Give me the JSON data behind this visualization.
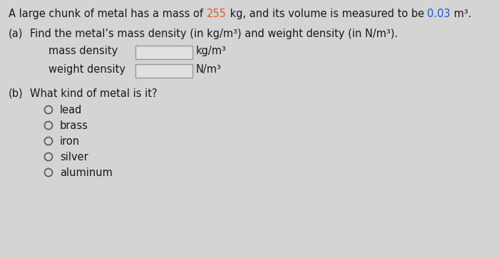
{
  "background_color": "#d4d4d4",
  "text_color": "#1a1a1a",
  "highlight_255": "#e05a2b",
  "highlight_003": "#2255cc",
  "font_size": 10.5,
  "font_size_super": 7.5,
  "title_parts": [
    [
      "A large chunk of metal has a mass of ",
      "#1a1a1a"
    ],
    [
      "255",
      "#e05a2b"
    ],
    [
      " kg, and its volume is measured to be ",
      "#1a1a1a"
    ],
    [
      "0.03",
      "#2255cc"
    ],
    [
      " m³.",
      "#1a1a1a"
    ]
  ],
  "part_a_label": "(a)",
  "part_a_text": "Find the metal’s mass density (in kg/m³) and weight density (in N/m³).",
  "mass_density_label": "mass density",
  "mass_density_unit": "kg/m³",
  "weight_density_label": "weight density",
  "weight_density_unit": "N/m³",
  "part_b_label": "(b)",
  "part_b_text": "What kind of metal is it?",
  "options": [
    "lead",
    "brass",
    "iron",
    "silver",
    "aluminum"
  ],
  "box_facecolor": "#e0e0e0",
  "box_edgecolor": "#999999",
  "circle_edgecolor": "#555555"
}
